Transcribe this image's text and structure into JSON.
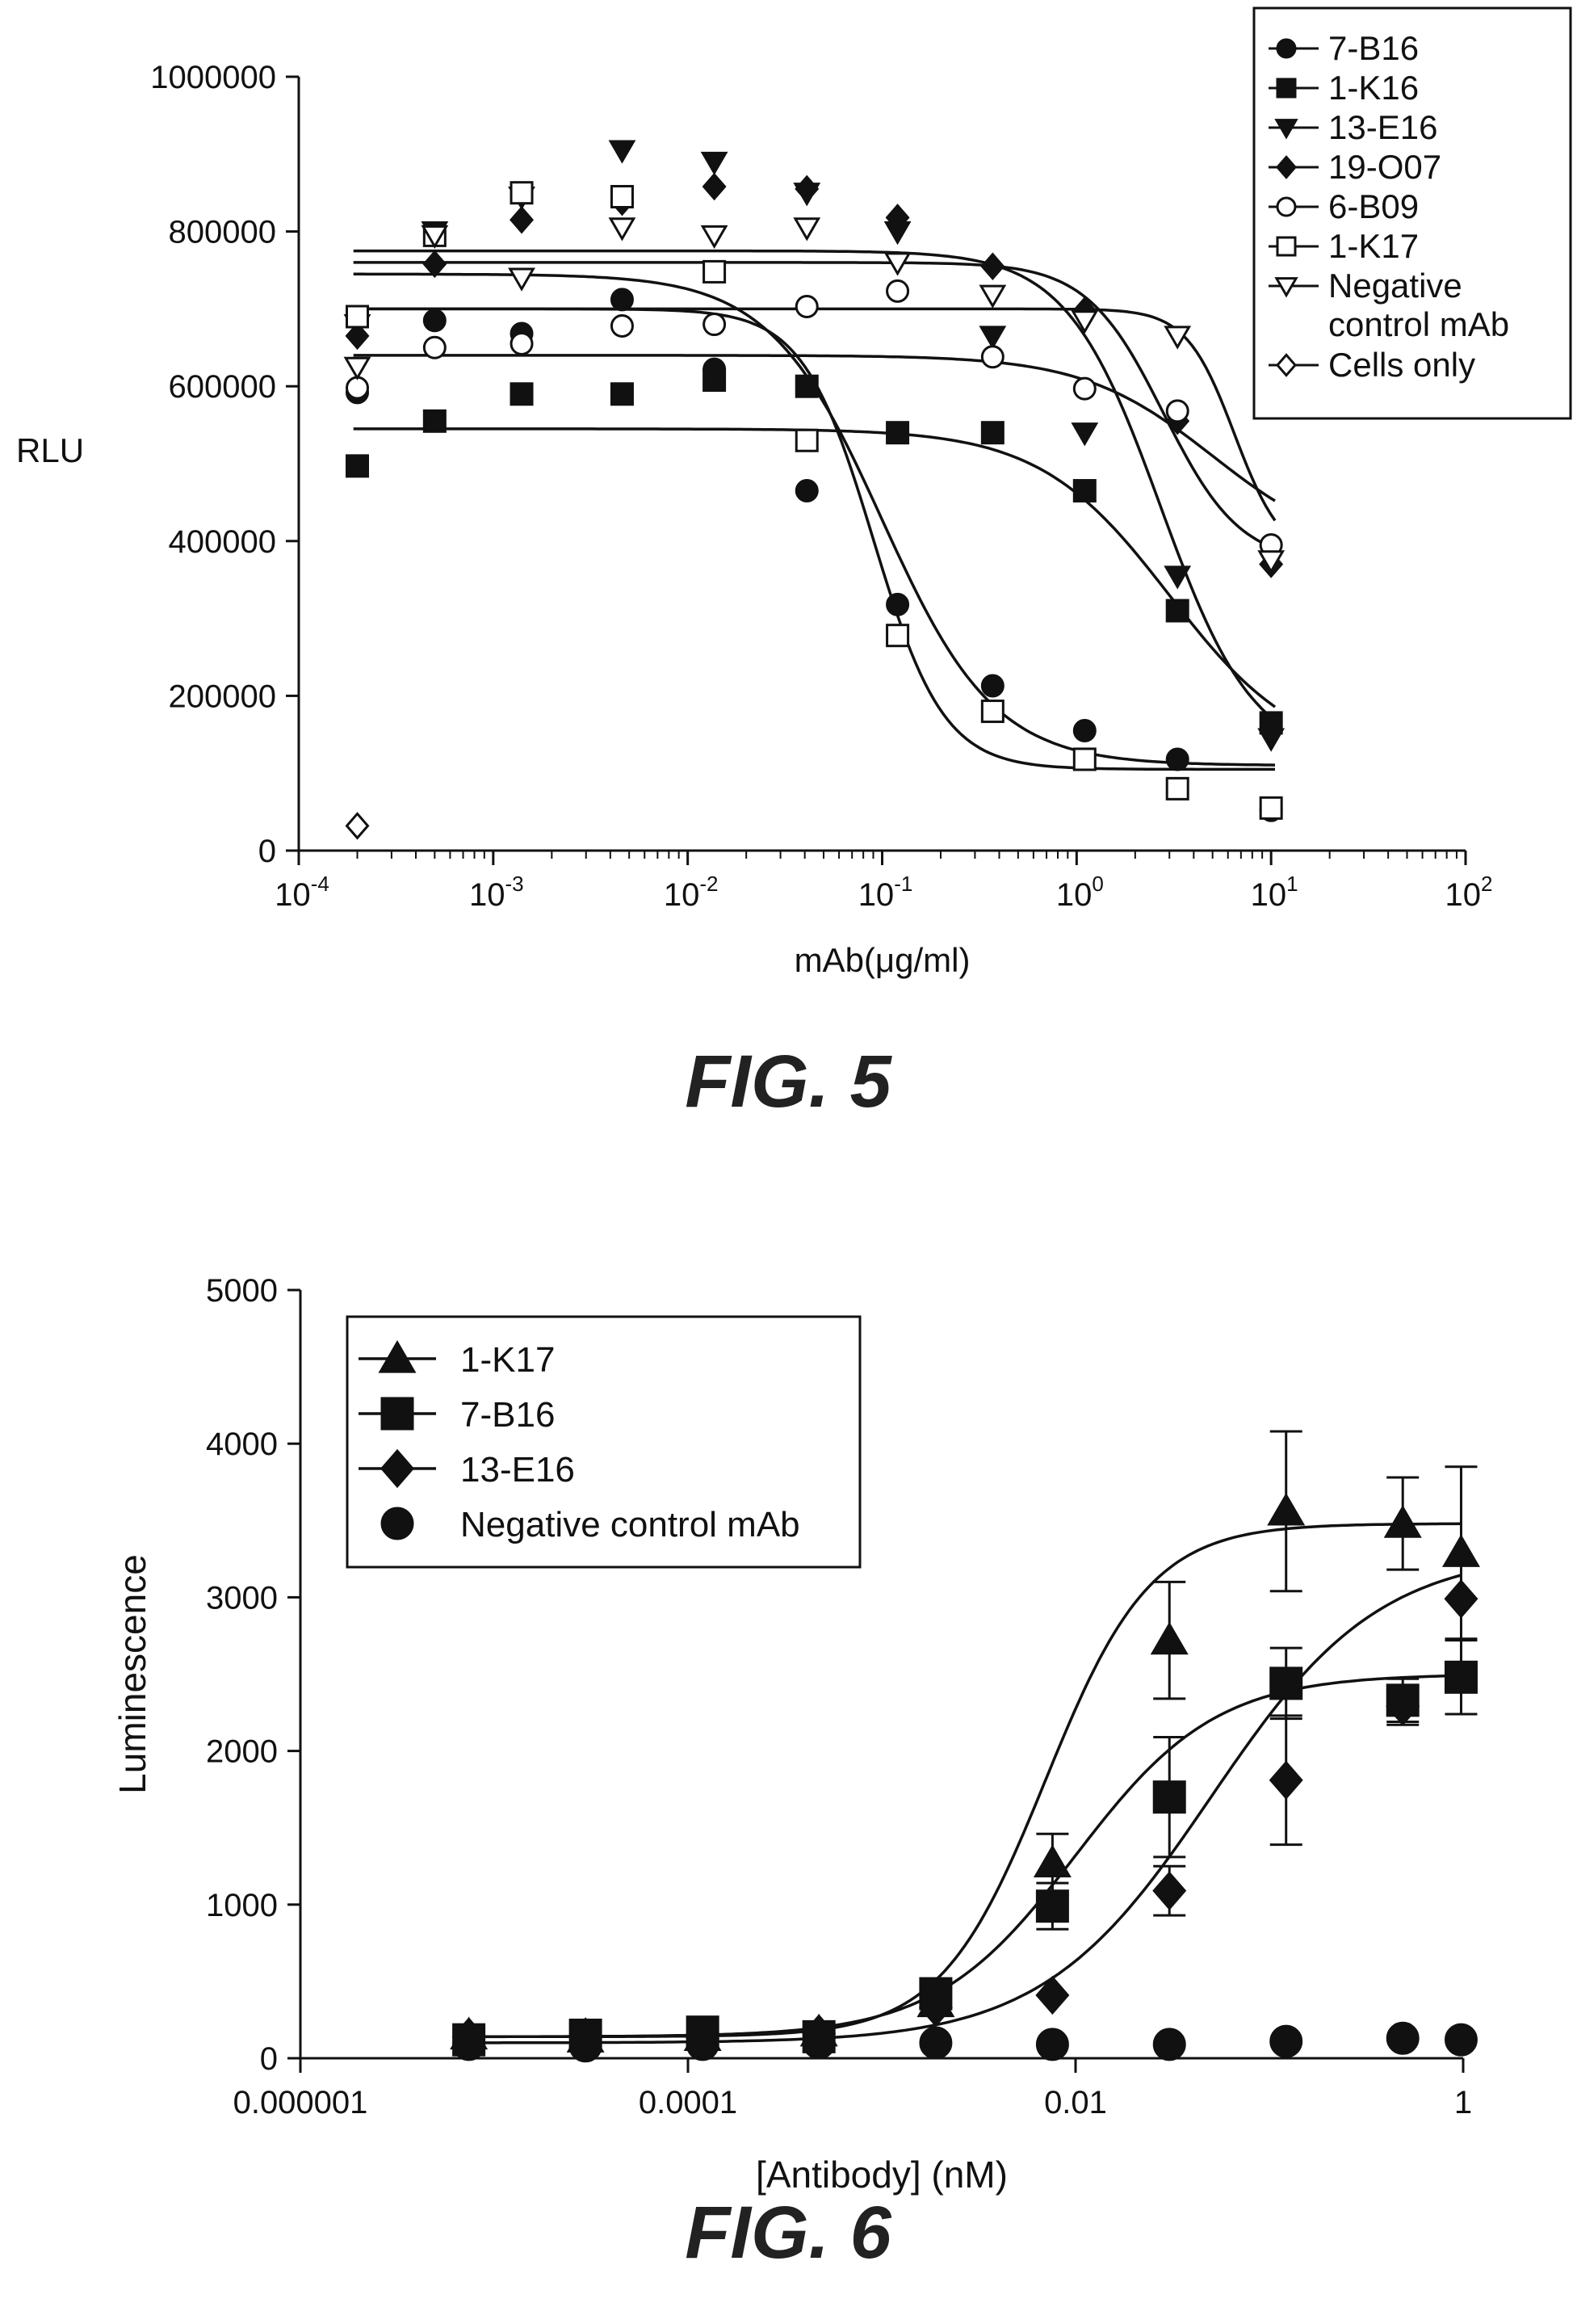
{
  "chart_data": [
    {
      "type": "scatter",
      "figure_label": "FIG. 5",
      "xlabel": "mAb(μg/ml)",
      "ylabel": "RLU",
      "xscale": "log",
      "xlim": [
        0.0001,
        100
      ],
      "ylim": [
        0,
        1000000
      ],
      "x_ticks": [
        {
          "base": "10",
          "exp": "-4",
          "value": 0.0001
        },
        {
          "base": "10",
          "exp": "-3",
          "value": 0.001
        },
        {
          "base": "10",
          "exp": "-2",
          "value": 0.01
        },
        {
          "base": "10",
          "exp": "-1",
          "value": 0.1
        },
        {
          "base": "10",
          "exp": "0",
          "value": 1
        },
        {
          "base": "10",
          "exp": "1",
          "value": 10
        },
        {
          "base": "10",
          "exp": "2",
          "value": 100
        }
      ],
      "y_ticks": [
        "0",
        "200000",
        "400000",
        "600000",
        "800000",
        "1000000"
      ],
      "legend_position": "top-right",
      "x": [
        0.0002,
        0.0005,
        0.0014,
        0.0046,
        0.0137,
        0.041,
        0.12,
        0.37,
        1.1,
        3.3,
        10
      ],
      "series": [
        {
          "name": "7-B16",
          "marker": "circle-filled",
          "values": [
            592000,
            685000,
            668000,
            712000,
            622000,
            465000,
            318000,
            213000,
            155000,
            118000,
            52000
          ],
          "fit": {
            "top": 745000,
            "bottom": 110000,
            "ec50": 0.1,
            "hill": 1.5
          }
        },
        {
          "name": "1-K16",
          "marker": "square-filled",
          "values": [
            497000,
            555000,
            590000,
            590000,
            608000,
            600000,
            540000,
            540000,
            465000,
            310000,
            165000
          ],
          "fit": {
            "top": 545000,
            "bottom": 115000,
            "ec50": 3,
            "hill": 1.3
          }
        },
        {
          "name": "13-E16",
          "marker": "triangle-down-filled",
          "values": [
            680000,
            800000,
            845000,
            905000,
            890000,
            850000,
            800000,
            665000,
            540000,
            355000,
            145000
          ],
          "fit": {
            "top": 775000,
            "bottom": 115000,
            "ec50": 2.7,
            "hill": 1.8
          }
        },
        {
          "name": "19-O07",
          "marker": "diamond-filled",
          "values": [
            665000,
            758000,
            815000,
            838000,
            858000,
            855000,
            818000,
            755000,
            698000,
            555000,
            370000
          ],
          "fit": {
            "top": 760000,
            "bottom": 370000,
            "ec50": 2.8,
            "hill": 2.2
          }
        },
        {
          "name": "6-B09",
          "marker": "circle-open",
          "values": [
            598000,
            650000,
            655000,
            678000,
            680000,
            703000,
            723000,
            638000,
            597000,
            568000,
            395000
          ],
          "fit": {
            "top": 640000,
            "bottom": 380000,
            "ec50": 5,
            "hill": 1.3
          }
        },
        {
          "name": "1-K17",
          "marker": "square-open",
          "values": [
            690000,
            795000,
            850000,
            845000,
            748000,
            530000,
            278000,
            180000,
            118000,
            80000,
            55000
          ],
          "fit": {
            "top": 700000,
            "bottom": 105000,
            "ec50": 0.09,
            "hill": 2.4
          }
        },
        {
          "name": "Negative control mAb",
          "legend_lines": [
            "Negative",
            "control mAb"
          ],
          "marker": "triangle-down-open",
          "values": [
            625000,
            795000,
            740000,
            805000,
            795000,
            805000,
            760000,
            718000,
            685000,
            665000,
            375000
          ],
          "fit": {
            "top": 700000,
            "bottom": 375000,
            "ec50": 6.5,
            "hill": 3.5
          }
        },
        {
          "name": "Cells only",
          "marker": "diamond-open",
          "values": [
            32000,
            null,
            null,
            null,
            null,
            null,
            null,
            null,
            null,
            null,
            null
          ]
        }
      ]
    },
    {
      "type": "scatter",
      "figure_label": "FIG. 6",
      "xlabel": "[Antibody] (nM)",
      "ylabel": "Luminescence",
      "xscale": "log",
      "xlim": [
        1e-06,
        1
      ],
      "ylim": [
        0,
        5000
      ],
      "x_ticks": [
        {
          "label": "0.000001",
          "value": 1e-06
        },
        {
          "label": "0.0001",
          "value": 0.0001
        },
        {
          "label": "0.01",
          "value": 0.01
        },
        {
          "label": "1",
          "value": 1
        }
      ],
      "y_ticks": [
        "0",
        "1000",
        "2000",
        "3000",
        "4000",
        "5000"
      ],
      "legend_position": "top-left",
      "x": [
        3.7e-06,
        7.4e-06,
        1.48e-05,
        2.96e-05,
        5.93e-05,
        0.000119,
        0.000237,
        0.000474,
        0.00095,
        0.0019,
        0.0038,
        0.0076,
        0.0152,
        0.0305,
        0.061,
        0.122,
        0.244,
        0.488,
        0.976
      ],
      "series": [
        {
          "name": "1-K17",
          "marker": "triangle-up-filled",
          "x_index": [
            1,
            3,
            5,
            7,
            9,
            11,
            13,
            15,
            17,
            18
          ],
          "values": [
            150,
            130,
            140,
            170,
            360,
            1270,
            2720,
            3560,
            3480,
            3290
          ],
          "errors": [
            0,
            0,
            0,
            0,
            0,
            190,
            380,
            520,
            300,
            560
          ],
          "fit": {
            "top": 3480,
            "bottom": 140,
            "ec50": 0.007,
            "hill": 1.6
          }
        },
        {
          "name": "7-B16",
          "marker": "square-filled",
          "x_index": [
            1,
            3,
            5,
            7,
            9,
            11,
            13,
            15,
            17,
            18
          ],
          "values": [
            120,
            150,
            170,
            140,
            420,
            990,
            1700,
            2440,
            2330,
            2480
          ],
          "errors": [
            0,
            0,
            0,
            0,
            0,
            150,
            390,
            230,
            140,
            240
          ],
          "fit": {
            "top": 2500,
            "bottom": 140,
            "ec50": 0.01,
            "hill": 1.2
          }
        },
        {
          "name": "13-E16",
          "marker": "diamond-filled",
          "x_index": [
            1,
            3,
            5,
            7,
            9,
            11,
            13,
            15,
            17,
            18
          ],
          "values": [
            140,
            140,
            130,
            160,
            330,
            410,
            1090,
            1810,
            2290,
            2990
          ],
          "errors": [
            0,
            0,
            0,
            0,
            0,
            0,
            160,
            420,
            120,
            0
          ],
          "fit": {
            "top": 3300,
            "bottom": 100,
            "ec50": 0.05,
            "hill": 1.0
          }
        },
        {
          "name": "Negative control mAb",
          "marker": "circle-filled",
          "x_index": [
            1,
            3,
            5,
            7,
            9,
            11,
            13,
            15,
            17,
            18
          ],
          "values": [
            90,
            80,
            90,
            100,
            100,
            90,
            90,
            110,
            130,
            120
          ],
          "errors": [
            0,
            0,
            0,
            0,
            0,
            0,
            0,
            0,
            0,
            0
          ]
        }
      ]
    }
  ]
}
